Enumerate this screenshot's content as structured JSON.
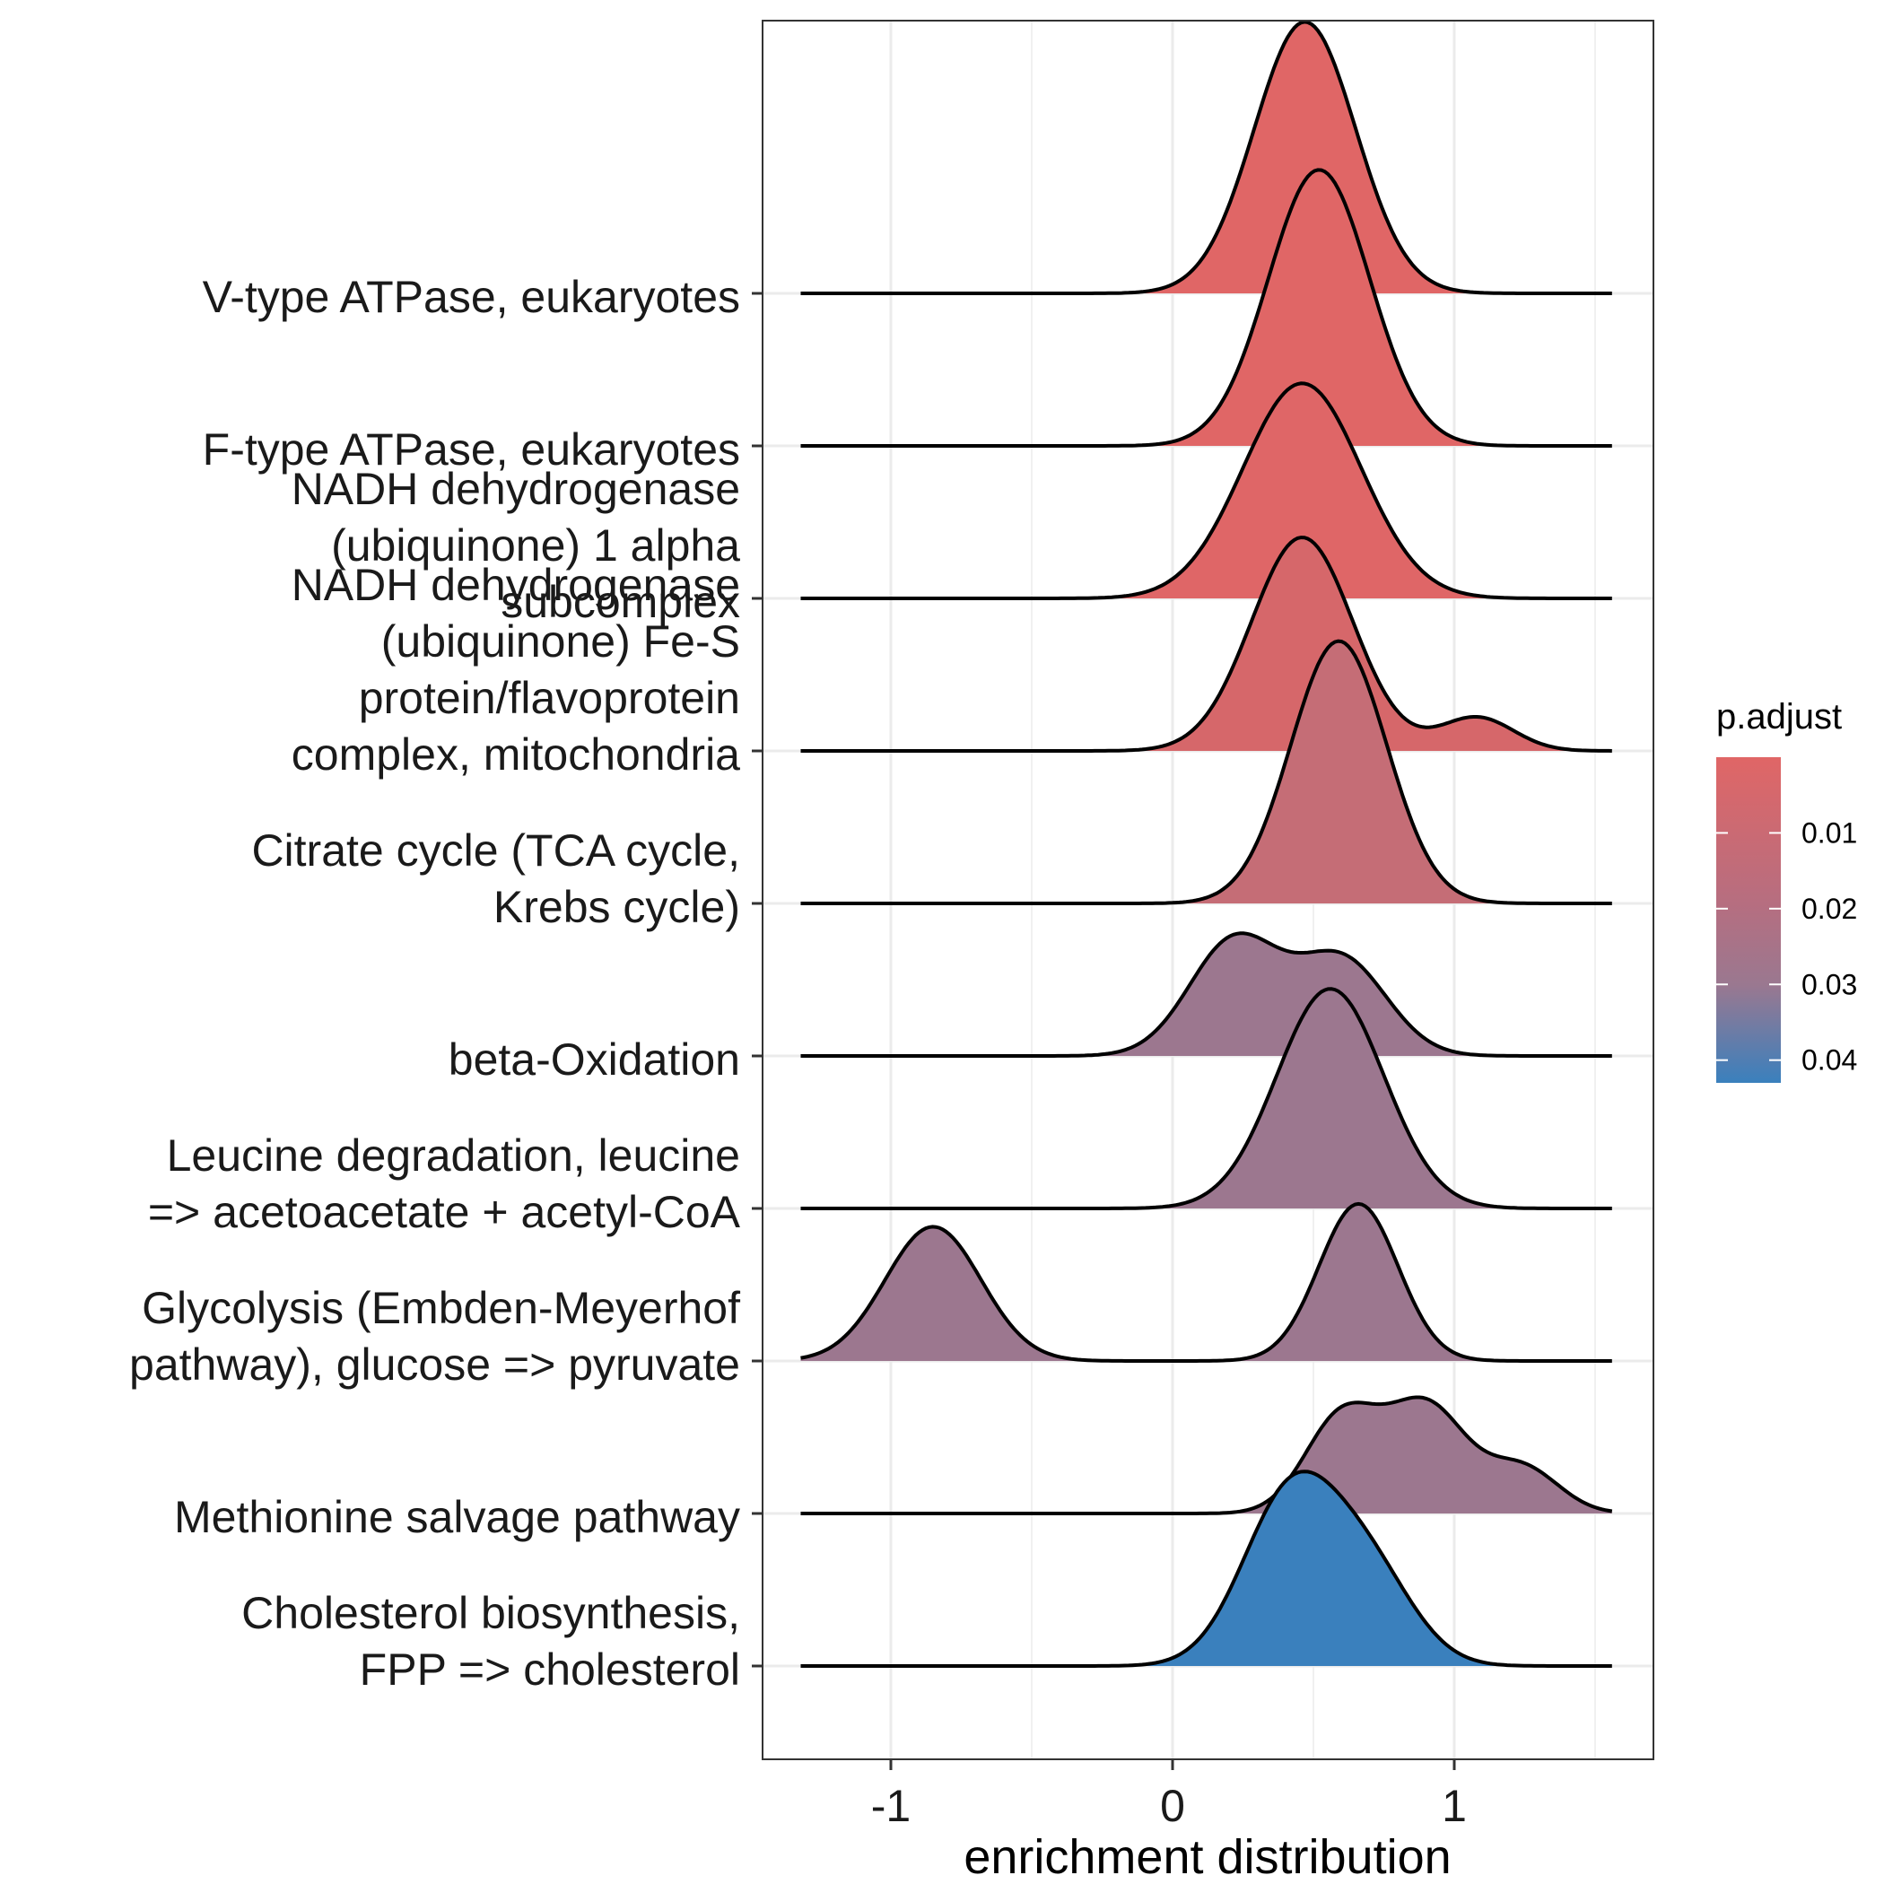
{
  "chart_data": {
    "type": "ridgeline",
    "xlabel": "enrichment distribution",
    "x_ticks": [
      "-1",
      "0",
      "1"
    ],
    "x_tick_values": [
      -1,
      0,
      1
    ],
    "xlim": [
      -1.45,
      1.7
    ],
    "x_support": [
      -1.32,
      1.56
    ],
    "grid": true,
    "legend": {
      "title": "p.adjust",
      "position": "right",
      "ticks": [
        "0.01",
        "0.02",
        "0.03",
        "0.04"
      ],
      "tick_values": [
        0.01,
        0.02,
        0.03,
        0.04
      ],
      "range": [
        0.0,
        0.043
      ],
      "color_low": "#E06666",
      "color_high": "#3A80BD"
    },
    "series": [
      {
        "name": "V-type ATPase, eukaryotes",
        "label_lines": [
          "V-type ATPase, eukaryotes"
        ],
        "p_adjust": 0.0015,
        "color": "#E06666",
        "density": [
          {
            "mu": 0.47,
            "sigma": 0.18,
            "h": 1.78
          }
        ]
      },
      {
        "name": "F-type ATPase, eukaryotes",
        "label_lines": [
          "F-type ATPase, eukaryotes"
        ],
        "p_adjust": 0.002,
        "color": "#E06666",
        "density": [
          {
            "mu": 0.52,
            "sigma": 0.18,
            "h": 1.81
          }
        ]
      },
      {
        "name": "NADH dehydrogenase (ubiquinone) 1 alpha subcomplex",
        "label_lines": [
          "NADH dehydrogenase",
          "(ubiquinone) 1 alpha",
          "subcomplex"
        ],
        "p_adjust": 0.003,
        "color": "#DF6667",
        "density": [
          {
            "mu": 0.46,
            "sigma": 0.21,
            "h": 1.41
          }
        ]
      },
      {
        "name": "NADH dehydrogenase (ubiquinone) Fe-S protein/flavoprotein complex, mitochondria",
        "label_lines": [
          "NADH dehydrogenase",
          "(ubiquinone) Fe-S",
          "protein/flavoprotein",
          "complex, mitochondria"
        ],
        "p_adjust": 0.006,
        "color": "#D6676A",
        "density": [
          {
            "mu": 0.46,
            "sigma": 0.18,
            "h": 1.4
          },
          {
            "mu": 1.08,
            "sigma": 0.13,
            "h": 0.22
          }
        ]
      },
      {
        "name": "Citrate cycle (TCA cycle, Krebs cycle)",
        "label_lines": [
          "Citrate cycle (TCA cycle,",
          "Krebs cycle)"
        ],
        "p_adjust": 0.012,
        "color": "#C56D76",
        "density": [
          {
            "mu": 0.59,
            "sigma": 0.17,
            "h": 1.72
          }
        ]
      },
      {
        "name": "beta-Oxidation",
        "label_lines": [
          "beta-Oxidation"
        ],
        "p_adjust": 0.025,
        "color": "#9C778F",
        "density": [
          {
            "mu": 0.22,
            "sigma": 0.16,
            "h": 0.76
          },
          {
            "mu": 0.6,
            "sigma": 0.16,
            "h": 0.63
          }
        ]
      },
      {
        "name": "Leucine degradation, leucine => acetoacetate + acetyl-CoA",
        "label_lines": [
          "Leucine degradation, leucine",
          "=> acetoacetate + acetyl-CoA"
        ],
        "p_adjust": 0.025,
        "color": "#9C778F",
        "density": [
          {
            "mu": 0.56,
            "sigma": 0.19,
            "h": 1.44
          }
        ]
      },
      {
        "name": "Glycolysis (Embden-Meyerhof pathway), glucose => pyruvate",
        "label_lines": [
          "Glycolysis (Embden-Meyerhof",
          "pathway), glucose => pyruvate"
        ],
        "p_adjust": 0.025,
        "color": "#9C778F",
        "density": [
          {
            "mu": -0.85,
            "sigma": 0.17,
            "h": 0.88
          },
          {
            "mu": 0.66,
            "sigma": 0.14,
            "h": 1.03
          }
        ]
      },
      {
        "name": "Methionine salvage pathway",
        "label_lines": [
          "Methionine salvage pathway"
        ],
        "p_adjust": 0.025,
        "color": "#9C778F",
        "density": [
          {
            "mu": 0.6,
            "sigma": 0.13,
            "h": 0.63
          },
          {
            "mu": 0.9,
            "sigma": 0.14,
            "h": 0.7
          },
          {
            "mu": 1.24,
            "sigma": 0.13,
            "h": 0.3
          }
        ]
      },
      {
        "name": "Cholesterol biosynthesis, FPP => cholesterol",
        "label_lines": [
          "Cholesterol biosynthesis,",
          "FPP => cholesterol"
        ],
        "p_adjust": 0.042,
        "color": "#3A80BD",
        "density": [
          {
            "mu": 0.42,
            "sigma": 0.17,
            "h": 1.12
          },
          {
            "mu": 0.7,
            "sigma": 0.16,
            "h": 0.57
          }
        ]
      }
    ]
  }
}
